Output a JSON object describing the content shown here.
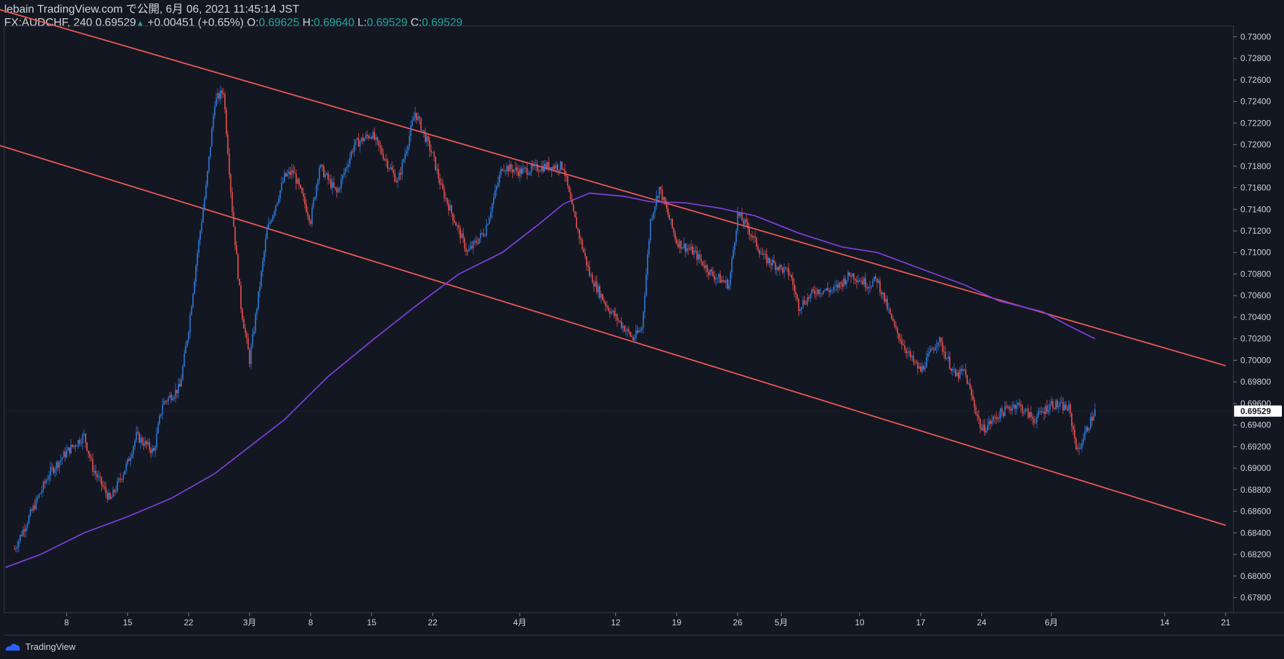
{
  "header": {
    "line1": "lebain TradingView.com で公開, 6月 06, 2021 11:45:14 JST",
    "symbol": "FX:AUDCHF, 240",
    "last": "0.69529",
    "change": "+0.00451 (+0.65%)",
    "o_label": "O:",
    "o": "0.69625",
    "h_label": "H:",
    "h": "0.69640",
    "l_label": "L:",
    "l": "0.69529",
    "c_label": "C:",
    "c": "0.69529"
  },
  "footer": {
    "brand": "TradingView",
    "icon": "tradingview-logo-icon"
  },
  "colors": {
    "background": "#131722",
    "up": "#2f7ee0",
    "down": "#ef5350",
    "channel": "#f05a55",
    "ma": "#7b3fd8",
    "text": "#d1d4dc",
    "last_tag": "#ffffff"
  },
  "chart_data": {
    "type": "candlestick",
    "title": "",
    "ylim": [
      0.6766,
      0.731
    ],
    "y_ticks": [
      "0.73000",
      "0.72800",
      "0.72600",
      "0.72400",
      "0.72200",
      "0.72000",
      "0.71800",
      "0.71600",
      "0.71400",
      "0.71200",
      "0.71000",
      "0.70800",
      "0.70600",
      "0.70400",
      "0.70200",
      "0.70000",
      "0.69800",
      "0.69600",
      "0.69400",
      "0.69200",
      "0.69000",
      "0.68800",
      "0.68600",
      "0.68400",
      "0.68200",
      "0.68000",
      "0.67800"
    ],
    "x_ticks": [
      {
        "label": "8",
        "date": "2021-02-08"
      },
      {
        "label": "15",
        "date": "2021-02-15"
      },
      {
        "label": "22",
        "date": "2021-02-22"
      },
      {
        "label": "3月",
        "date": "2021-03-01"
      },
      {
        "label": "8",
        "date": "2021-03-08"
      },
      {
        "label": "15",
        "date": "2021-03-15"
      },
      {
        "label": "22",
        "date": "2021-03-22"
      },
      {
        "label": "4月",
        "date": "2021-04-01"
      },
      {
        "label": "12",
        "date": "2021-04-12"
      },
      {
        "label": "19",
        "date": "2021-04-19"
      },
      {
        "label": "26",
        "date": "2021-04-26"
      },
      {
        "label": "5月",
        "date": "2021-05-01"
      },
      {
        "label": "10",
        "date": "2021-05-10"
      },
      {
        "label": "17",
        "date": "2021-05-17"
      },
      {
        "label": "24",
        "date": "2021-05-24"
      },
      {
        "label": "6月",
        "date": "2021-06-01"
      },
      {
        "label": "14",
        "date": "2021-06-14"
      },
      {
        "label": "21",
        "date": "2021-06-21"
      }
    ],
    "last_price": "0.69529",
    "price_path": [
      [
        "2021-02-02",
        0.6825
      ],
      [
        "2021-02-04",
        0.686
      ],
      [
        "2021-02-06",
        0.6895
      ],
      [
        "2021-02-08",
        0.6915
      ],
      [
        "2021-02-10",
        0.693
      ],
      [
        "2021-02-11",
        0.69
      ],
      [
        "2021-02-13",
        0.687
      ],
      [
        "2021-02-15",
        0.6905
      ],
      [
        "2021-02-16",
        0.693
      ],
      [
        "2021-02-18",
        0.6915
      ],
      [
        "2021-02-19",
        0.696
      ],
      [
        "2021-02-21",
        0.6975
      ],
      [
        "2021-02-22",
        0.703
      ],
      [
        "2021-02-23",
        0.71
      ],
      [
        "2021-02-24",
        0.716
      ],
      [
        "2021-02-25",
        0.724
      ],
      [
        "2021-02-26",
        0.725
      ],
      [
        "2021-02-27",
        0.714
      ],
      [
        "2021-02-28",
        0.705
      ],
      [
        "2021-03-01",
        0.7
      ],
      [
        "2021-03-03",
        0.712
      ],
      [
        "2021-03-05",
        0.717
      ],
      [
        "2021-03-06",
        0.7175
      ],
      [
        "2021-03-08",
        0.713
      ],
      [
        "2021-03-09",
        0.718
      ],
      [
        "2021-03-11",
        0.7155
      ],
      [
        "2021-03-13",
        0.72
      ],
      [
        "2021-03-15",
        0.721
      ],
      [
        "2021-03-18",
        0.7165
      ],
      [
        "2021-03-20",
        0.723
      ],
      [
        "2021-03-22",
        0.719
      ],
      [
        "2021-03-23",
        0.716
      ],
      [
        "2021-03-26",
        0.71
      ],
      [
        "2021-03-28",
        0.712
      ],
      [
        "2021-03-30",
        0.718
      ],
      [
        "2021-04-01",
        0.7175
      ],
      [
        "2021-04-04",
        0.718
      ],
      [
        "2021-04-06",
        0.718
      ],
      [
        "2021-04-07",
        0.714
      ],
      [
        "2021-04-09",
        0.708
      ],
      [
        "2021-04-11",
        0.705
      ],
      [
        "2021-04-13",
        0.703
      ],
      [
        "2021-04-14",
        0.702
      ],
      [
        "2021-04-15",
        0.703
      ],
      [
        "2021-04-16",
        0.713
      ],
      [
        "2021-04-17",
        0.716
      ],
      [
        "2021-04-19",
        0.711
      ],
      [
        "2021-04-21",
        0.71
      ],
      [
        "2021-04-23",
        0.708
      ],
      [
        "2021-04-25",
        0.707
      ],
      [
        "2021-04-26",
        0.7135
      ],
      [
        "2021-04-27",
        0.7125
      ],
      [
        "2021-04-29",
        0.7095
      ],
      [
        "2021-05-02",
        0.708
      ],
      [
        "2021-05-03",
        0.705
      ],
      [
        "2021-05-05",
        0.7065
      ],
      [
        "2021-05-07",
        0.7065
      ],
      [
        "2021-05-09",
        0.708
      ],
      [
        "2021-05-11",
        0.707
      ],
      [
        "2021-05-12",
        0.7075
      ],
      [
        "2021-05-14",
        0.703
      ],
      [
        "2021-05-16",
        0.7
      ],
      [
        "2021-05-17",
        0.699
      ],
      [
        "2021-05-19",
        0.702
      ],
      [
        "2021-05-21",
        0.6985
      ],
      [
        "2021-05-22",
        0.699
      ],
      [
        "2021-05-24",
        0.6935
      ],
      [
        "2021-05-26",
        0.695
      ],
      [
        "2021-05-28",
        0.696
      ],
      [
        "2021-05-30",
        0.6945
      ],
      [
        "2021-06-01",
        0.696
      ],
      [
        "2021-06-03",
        0.6955
      ],
      [
        "2021-06-04",
        0.6915
      ],
      [
        "2021-06-05",
        0.6935
      ],
      [
        "2021-06-06",
        0.6953
      ]
    ],
    "moving_average": [
      [
        "2021-02-01",
        0.6808
      ],
      [
        "2021-02-05",
        0.682
      ],
      [
        "2021-02-10",
        0.684
      ],
      [
        "2021-02-15",
        0.6855
      ],
      [
        "2021-02-20",
        0.6872
      ],
      [
        "2021-02-25",
        0.6895
      ],
      [
        "2021-03-01",
        0.692
      ],
      [
        "2021-03-05",
        0.6945
      ],
      [
        "2021-03-10",
        0.6985
      ],
      [
        "2021-03-15",
        0.7018
      ],
      [
        "2021-03-20",
        0.705
      ],
      [
        "2021-03-25",
        0.708
      ],
      [
        "2021-03-30",
        0.71
      ],
      [
        "2021-04-03",
        0.7125
      ],
      [
        "2021-04-06",
        0.7145
      ],
      [
        "2021-04-09",
        0.7155
      ],
      [
        "2021-04-13",
        0.7152
      ],
      [
        "2021-04-16",
        0.7147
      ],
      [
        "2021-04-20",
        0.7146
      ],
      [
        "2021-04-24",
        0.7141
      ],
      [
        "2021-04-28",
        0.7134
      ],
      [
        "2021-05-03",
        0.7118
      ],
      [
        "2021-05-08",
        0.7105
      ],
      [
        "2021-05-12",
        0.71
      ],
      [
        "2021-05-17",
        0.7085
      ],
      [
        "2021-05-22",
        0.707
      ],
      [
        "2021-05-26",
        0.7055
      ],
      [
        "2021-05-31",
        0.7045
      ],
      [
        "2021-06-03",
        0.7032
      ],
      [
        "2021-06-06",
        0.702
      ]
    ],
    "channel_lines": [
      {
        "name": "",
        "from": [
          "2021-01-25",
          0.734
        ],
        "to": [
          "2021-06-21",
          0.6995
        ]
      },
      {
        "name": "",
        "from": [
          "2021-01-31",
          0.72
        ],
        "to": [
          "2021-06-21",
          0.6847
        ]
      }
    ]
  }
}
